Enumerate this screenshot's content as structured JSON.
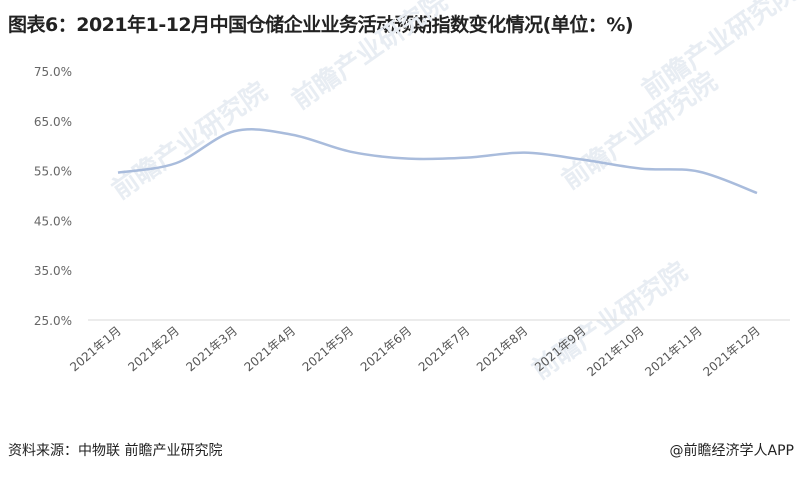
{
  "title": "图表6：2021年1-12月中国仓储企业业务活动预期指数变化情况(单位：%)",
  "source": "资料来源：中物联 前瞻产业研究院",
  "brand": "@前瞻经济学人APP",
  "watermark": "前瞻产业研究院",
  "chart_data": {
    "type": "line",
    "title": "",
    "xlabel": "",
    "ylabel": "",
    "categories": [
      "2021年1月",
      "2021年2月",
      "2021年3月",
      "2021年4月",
      "2021年5月",
      "2021年6月",
      "2021年7月",
      "2021年8月",
      "2021年9月",
      "2021年10月",
      "2021年11月",
      "2021年12月"
    ],
    "values": [
      54.6,
      56.5,
      62.9,
      62.2,
      58.8,
      57.4,
      57.6,
      58.6,
      57.2,
      55.4,
      54.8,
      50.5
    ],
    "yticks": [
      "25.0%",
      "35.0%",
      "45.0%",
      "55.0%",
      "65.0%",
      "75.0%"
    ],
    "ylim": [
      25,
      75
    ],
    "grid": false,
    "smooth": true,
    "line_color": "#a9bcdc"
  }
}
